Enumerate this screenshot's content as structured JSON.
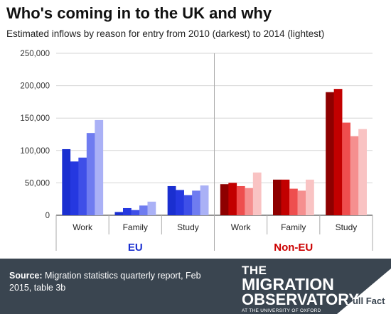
{
  "title": "Who's coming in to the UK and why",
  "subtitle": "Estimated inflows by reason for entry from 2010 (darkest) to 2014 (lightest)",
  "footer": {
    "source_label": "Source:",
    "source_text": "Migration statistics quarterly report, Feb 2015, table 3b",
    "logo_line1": "THE",
    "logo_line2": "MIGRATION",
    "logo_line3": "OBSERVATORY",
    "logo_line4": "AT THE UNIVERSITY OF OXFORD",
    "fullfact": "Full Fact"
  },
  "chart_data": {
    "type": "bar",
    "ylim": [
      0,
      250000
    ],
    "yticks": [
      0,
      50000,
      100000,
      150000,
      200000,
      250000
    ],
    "ytick_labels": [
      "0",
      "50,000",
      "100,000",
      "150,000",
      "200,000",
      "250,000"
    ],
    "groups": [
      {
        "name": "EU",
        "color": "#1a2fd0",
        "palette": [
          "#1a2fd0",
          "#2538e0",
          "#3e4fe8",
          "#6f7cf0",
          "#aab1f6"
        ],
        "categories": [
          {
            "label": "Work",
            "values": [
              102000,
              83000,
              89000,
              127000,
              147000
            ]
          },
          {
            "label": "Family",
            "values": [
              5000,
              11000,
              8000,
              15000,
              21000
            ]
          },
          {
            "label": "Study",
            "values": [
              45000,
              39000,
              31000,
              38000,
              46000
            ]
          }
        ]
      },
      {
        "name": "Non-EU",
        "color": "#cc0000",
        "palette": [
          "#8e0000",
          "#c20000",
          "#ee4e4e",
          "#f58f8f",
          "#f9c3c3"
        ],
        "categories": [
          {
            "label": "Work",
            "values": [
              48000,
              50000,
              45000,
              42000,
              66000
            ]
          },
          {
            "label": "Family",
            "values": [
              55000,
              55000,
              41000,
              38000,
              55000
            ]
          },
          {
            "label": "Study",
            "values": [
              190000,
              195000,
              143000,
              122000,
              133000
            ]
          }
        ]
      }
    ]
  }
}
